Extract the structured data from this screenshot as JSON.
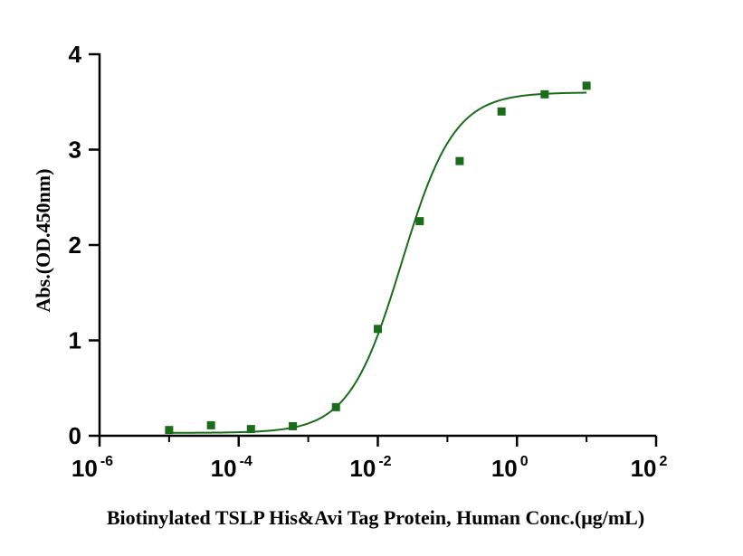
{
  "chart_data": {
    "type": "scatter",
    "title": "",
    "xlabel": "Biotinylated TSLP His&Avi Tag Protein, Human Conc.(μg/mL)",
    "ylabel": "Abs.(OD.450nm)",
    "xscale": "log",
    "xlim": [
      1e-06,
      100
    ],
    "ylim": [
      0,
      4
    ],
    "x_ticks": [
      {
        "base": "10",
        "exp": "-6",
        "value": 1e-06
      },
      {
        "base": "10",
        "exp": "-4",
        "value": 0.0001
      },
      {
        "base": "10",
        "exp": "-2",
        "value": 0.01
      },
      {
        "base": "10",
        "exp": "0",
        "value": 1
      },
      {
        "base": "10",
        "exp": "2",
        "value": 100
      }
    ],
    "y_ticks": [
      "0",
      "1",
      "2",
      "3",
      "4"
    ],
    "grid": false,
    "series": [
      {
        "color": "#1a6b1a",
        "marker": "square",
        "x": [
          1e-05,
          4e-05,
          0.00015,
          0.0006,
          0.0025,
          0.01,
          0.04,
          0.15,
          0.6,
          2.5,
          10
        ],
        "y": [
          0.06,
          0.11,
          0.07,
          0.1,
          0.3,
          1.12,
          2.25,
          2.88,
          3.4,
          3.58,
          3.67
        ]
      }
    ],
    "fit_curve": {
      "model": "4PL",
      "bottom": 0.03,
      "top": 3.6,
      "ec50": 0.022,
      "hill": 1.15,
      "x_range": [
        1e-05,
        10
      ],
      "color": "#1a6b1a"
    }
  }
}
